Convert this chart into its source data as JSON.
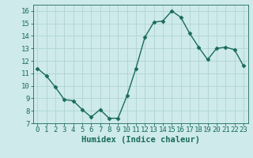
{
  "x": [
    0,
    1,
    2,
    3,
    4,
    5,
    6,
    7,
    8,
    9,
    10,
    11,
    12,
    13,
    14,
    15,
    16,
    17,
    18,
    19,
    20,
    21,
    22,
    23
  ],
  "y": [
    11.4,
    10.8,
    9.9,
    8.9,
    8.8,
    8.1,
    7.5,
    8.1,
    7.4,
    7.4,
    9.2,
    11.4,
    13.9,
    15.1,
    15.2,
    16.0,
    15.5,
    14.2,
    13.1,
    12.1,
    13.0,
    13.1,
    12.9,
    11.6
  ],
  "line_color": "#1a6b5a",
  "marker": "D",
  "marker_size": 2.5,
  "background_color": "#ceeaea",
  "grid_color": "#b0d4d4",
  "xlabel": "Humidex (Indice chaleur)",
  "xlabel_fontsize": 7.5,
  "xlim": [
    -0.5,
    23.5
  ],
  "ylim": [
    7,
    16.5
  ],
  "yticks": [
    7,
    8,
    9,
    10,
    11,
    12,
    13,
    14,
    15,
    16
  ],
  "xticks": [
    0,
    1,
    2,
    3,
    4,
    5,
    6,
    7,
    8,
    9,
    10,
    11,
    12,
    13,
    14,
    15,
    16,
    17,
    18,
    19,
    20,
    21,
    22,
    23
  ],
  "tick_fontsize": 6.5,
  "line_width": 1.0
}
